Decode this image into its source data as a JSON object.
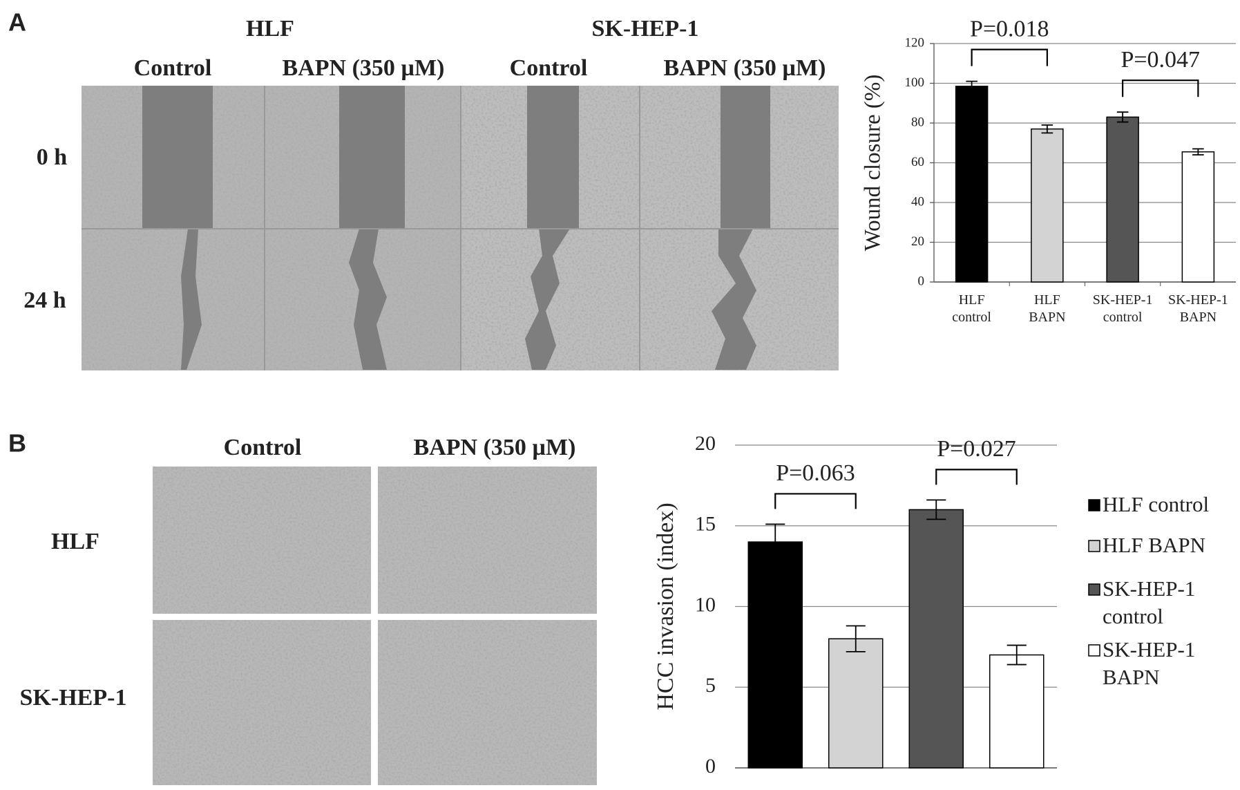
{
  "panel_a": {
    "label": "A",
    "cell_lines": [
      "HLF",
      "SK-HEP-1"
    ],
    "conditions": [
      "Control",
      "BAPN (350 µM)",
      "Control",
      "BAPN (350 µM)"
    ],
    "times": [
      "0 h",
      "24 h"
    ]
  },
  "panel_b": {
    "label": "B",
    "conditions": [
      "Control",
      "BAPN (350 µM)"
    ],
    "cell_lines": [
      "HLF",
      "SK-HEP-1"
    ]
  },
  "chart_data": [
    {
      "type": "bar",
      "ylabel": "Wound closure (%)",
      "categories": [
        "HLF control",
        "HLF BAPN",
        "SK-HEP-1 control",
        "SK-HEP-1 BAPN"
      ],
      "values": [
        98.5,
        77,
        83,
        65.5
      ],
      "errors": [
        2.5,
        2,
        2.5,
        1.5
      ],
      "colors": [
        "#000000",
        "#d3d3d3",
        "#555555",
        "#ffffff"
      ],
      "ylim": [
        0,
        120
      ],
      "yticks": [
        0,
        20,
        40,
        60,
        80,
        100,
        120
      ],
      "grid": true,
      "y_axis_line": true,
      "annotations": [
        "P=0.018",
        "P=0.047"
      ]
    },
    {
      "type": "bar",
      "ylabel": "HCC invasion (index)",
      "categories": [
        "HLF control",
        "HLF BAPN",
        "SK-HEP-1 control",
        "SK-HEP-1 BAPN"
      ],
      "values": [
        14,
        8,
        16,
        7
      ],
      "errors": [
        1.1,
        0.8,
        0.6,
        0.6
      ],
      "colors": [
        "#000000",
        "#d3d3d3",
        "#555555",
        "#ffffff"
      ],
      "ylim": [
        0,
        20
      ],
      "yticks": [
        0,
        5,
        10,
        15,
        20
      ],
      "grid": true,
      "y_axis_line": false,
      "legend": "right",
      "annotations": [
        "P=0.063",
        "P=0.027"
      ]
    }
  ]
}
